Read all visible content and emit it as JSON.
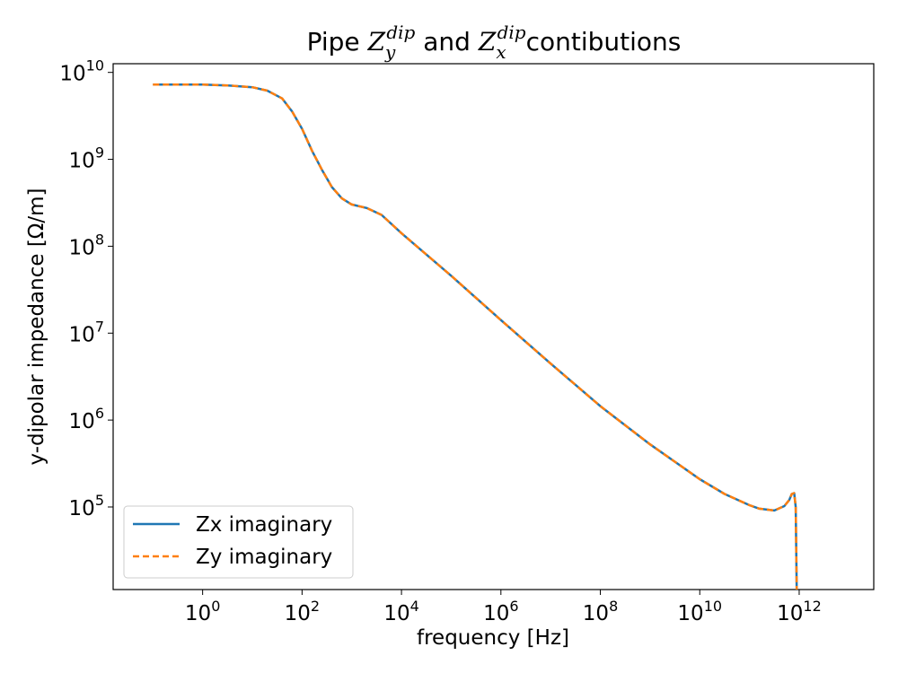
{
  "chart_data": {
    "type": "line",
    "title_parts": {
      "prefix": "Pipe ",
      "z1": "Z",
      "z1_sub": "y",
      "z1_sup": "dip",
      "middle": " and ",
      "z2": "Z",
      "z2_sub": "x",
      "z2_sup": "dip",
      "suffix": "contibutions"
    },
    "xlabel": "frequency [Hz]",
    "ylabel": "y-dipolar impedance [Ω/m]",
    "xscale": "log",
    "yscale": "log",
    "xlim_exp": [
      -1.8,
      13.5
    ],
    "ylim_exp": [
      4.05,
      10.1
    ],
    "xticks": [
      {
        "base": "10",
        "exp": "0"
      },
      {
        "base": "10",
        "exp": "2"
      },
      {
        "base": "10",
        "exp": "4"
      },
      {
        "base": "10",
        "exp": "6"
      },
      {
        "base": "10",
        "exp": "8"
      },
      {
        "base": "10",
        "exp": "10"
      },
      {
        "base": "10",
        "exp": "12"
      }
    ],
    "yticks": [
      {
        "base": "10",
        "exp": "5"
      },
      {
        "base": "10",
        "exp": "6"
      },
      {
        "base": "10",
        "exp": "7"
      },
      {
        "base": "10",
        "exp": "8"
      },
      {
        "base": "10",
        "exp": "9"
      },
      {
        "base": "10",
        "exp": "10"
      }
    ],
    "grid": false,
    "legend_position": "lower-left",
    "series": [
      {
        "name": "Zx imaginary",
        "color": "#1f77b4",
        "style": "solid",
        "x_log10": [
          -1,
          0,
          0.5,
          1,
          1.3,
          1.6,
          1.8,
          2,
          2.2,
          2.4,
          2.6,
          2.8,
          3,
          3.3,
          3.6,
          4,
          5,
          6,
          7,
          8,
          9,
          10,
          10.5,
          11,
          11.2,
          11.5,
          11.7,
          11.8,
          11.85,
          11.9,
          11.93,
          11.95
        ],
        "y_log10": [
          9.86,
          9.86,
          9.85,
          9.83,
          9.79,
          9.7,
          9.55,
          9.35,
          9.1,
          8.88,
          8.68,
          8.55,
          8.48,
          8.44,
          8.36,
          8.15,
          7.66,
          7.15,
          6.65,
          6.16,
          5.72,
          5.32,
          5.15,
          5.02,
          4.98,
          4.96,
          5.01,
          5.08,
          5.15,
          5.16,
          5.0,
          4.05
        ]
      },
      {
        "name": "Zy imaginary",
        "color": "#ff7f0e",
        "style": "dashed",
        "x_log10": [
          -1,
          0,
          0.5,
          1,
          1.3,
          1.6,
          1.8,
          2,
          2.2,
          2.4,
          2.6,
          2.8,
          3,
          3.3,
          3.6,
          4,
          5,
          6,
          7,
          8,
          9,
          10,
          10.5,
          11,
          11.2,
          11.5,
          11.7,
          11.8,
          11.85,
          11.9,
          11.93,
          11.95
        ],
        "y_log10": [
          9.86,
          9.86,
          9.85,
          9.83,
          9.79,
          9.7,
          9.55,
          9.35,
          9.1,
          8.88,
          8.68,
          8.55,
          8.48,
          8.44,
          8.36,
          8.15,
          7.66,
          7.15,
          6.65,
          6.16,
          5.72,
          5.32,
          5.15,
          5.02,
          4.98,
          4.96,
          5.01,
          5.08,
          5.15,
          5.16,
          5.0,
          4.05
        ]
      }
    ]
  }
}
